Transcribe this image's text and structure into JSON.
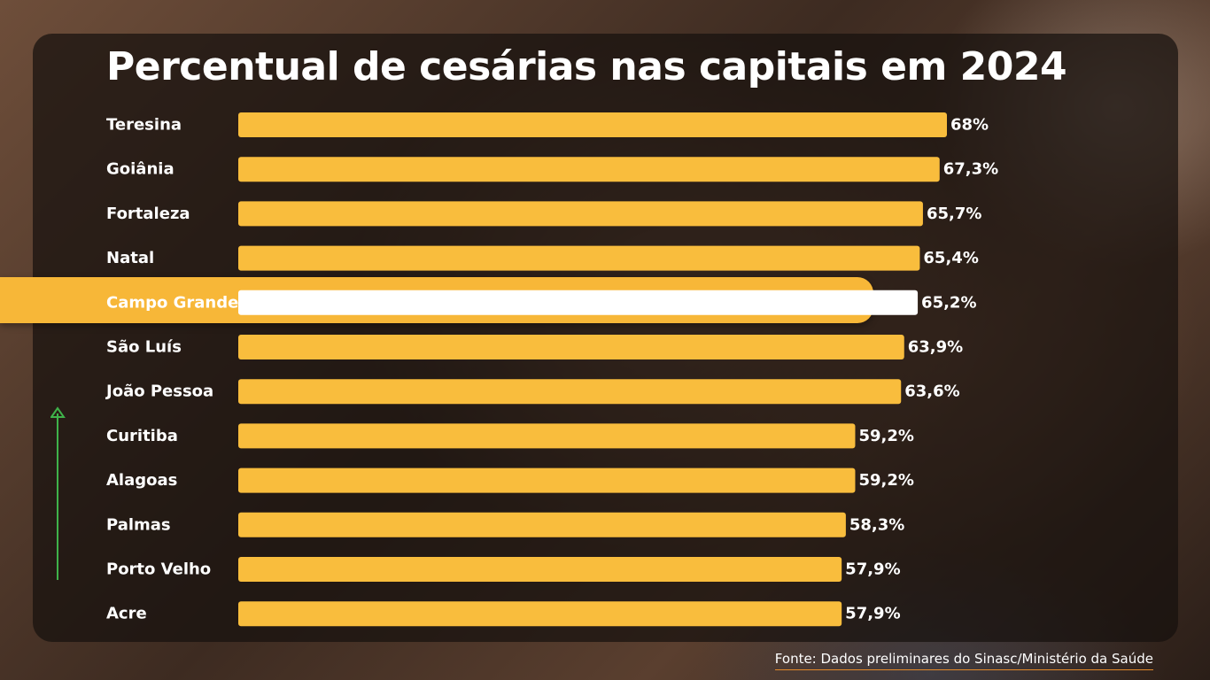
{
  "chart_data": {
    "type": "bar",
    "orientation": "horizontal",
    "title": "Percentual de cesárias nas capitais em 2024",
    "categories": [
      "Teresina",
      "Goiânia",
      "Fortaleza",
      "Natal",
      "Campo Grande",
      "São Luís",
      "João Pessoa",
      "Curitiba",
      "Alagoas",
      "Palmas",
      "Porto Velho",
      "Acre"
    ],
    "values": [
      68,
      67.3,
      65.7,
      65.4,
      65.2,
      63.9,
      63.6,
      59.2,
      59.2,
      58.3,
      57.9,
      57.9
    ],
    "value_labels": [
      "68%",
      "67,3%",
      "65,7%",
      "65,4%",
      "65,2%",
      "63,9%",
      "63,6%",
      "59,2%",
      "59,2%",
      "58,3%",
      "57,9%",
      "57,9%"
    ],
    "highlighted_category": "Campo Grande",
    "bar_color": "#f9bd3d",
    "highlight_bar_color": "#ffffff",
    "highlight_band_color": "#f7b738",
    "grid": false,
    "legend": "none"
  },
  "source": "Fonte: Dados preliminares do Sinasc/Ministério da Saúde",
  "trend_arrow": {
    "icon": "up-arrow-icon",
    "color": "#3fb24a"
  }
}
